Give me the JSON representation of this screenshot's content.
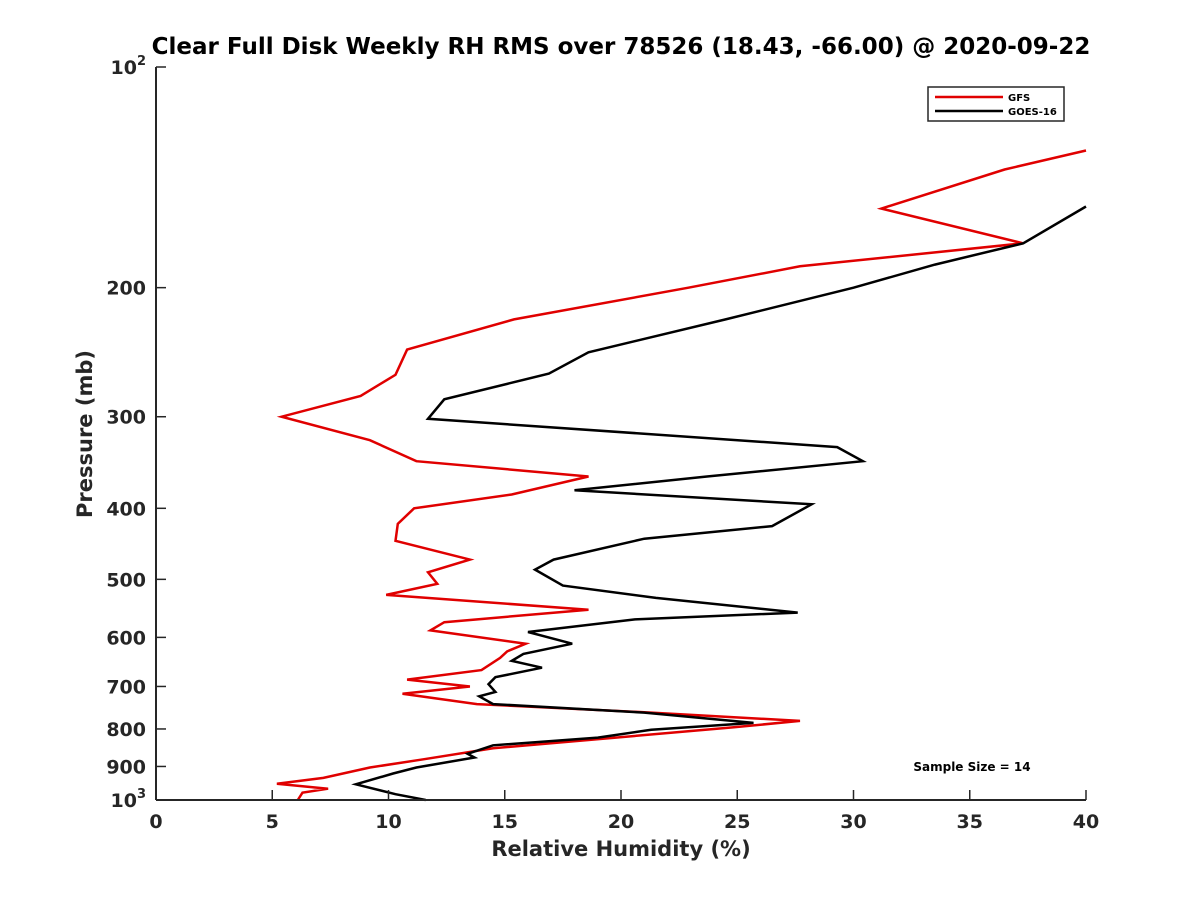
{
  "chart_data": {
    "type": "line",
    "title": "Clear Full Disk Weekly RH RMS over 78526 (18.43, -66.00) @ 2020-09-22",
    "xlabel": "Relative Humidity (%)",
    "ylabel": "Pressure (mb)",
    "xlim": [
      0,
      40
    ],
    "ylim": [
      100,
      1000
    ],
    "yscale": "log",
    "y_reversed": true,
    "x_ticks": [
      0,
      5,
      10,
      15,
      20,
      25,
      30,
      35,
      40
    ],
    "y_ticks": [
      {
        "value": 100,
        "label": "10",
        "sup": "2"
      },
      {
        "value": 200,
        "label": "200"
      },
      {
        "value": 300,
        "label": "300"
      },
      {
        "value": 400,
        "label": "400"
      },
      {
        "value": 500,
        "label": "500"
      },
      {
        "value": 600,
        "label": "600"
      },
      {
        "value": 700,
        "label": "700"
      },
      {
        "value": 800,
        "label": "800"
      },
      {
        "value": 900,
        "label": "900"
      },
      {
        "value": 1000,
        "label": "10",
        "sup": "3"
      }
    ],
    "grid": false,
    "legend_position": "top-right",
    "annotation": "Sample Size = 14",
    "series": [
      {
        "name": "GFS",
        "color": "#e00000",
        "points": [
          [
            40.0,
            130
          ],
          [
            36.5,
            138
          ],
          [
            31.2,
            156
          ],
          [
            37.3,
            174
          ],
          [
            27.7,
            187
          ],
          [
            22.9,
            200
          ],
          [
            15.4,
            221
          ],
          [
            10.8,
            243
          ],
          [
            10.3,
            263
          ],
          [
            8.8,
            281
          ],
          [
            5.4,
            300
          ],
          [
            9.2,
            323
          ],
          [
            11.2,
            345
          ],
          [
            18.6,
            362
          ],
          [
            15.3,
            383
          ],
          [
            11.1,
            400
          ],
          [
            10.4,
            420
          ],
          [
            10.3,
            443
          ],
          [
            13.5,
            470
          ],
          [
            11.7,
            489
          ],
          [
            12.1,
            507
          ],
          [
            9.9,
            525
          ],
          [
            18.6,
            550
          ],
          [
            12.4,
            572
          ],
          [
            11.8,
            587
          ],
          [
            15.9,
            612
          ],
          [
            15.1,
            627
          ],
          [
            14.8,
            640
          ],
          [
            14.0,
            665
          ],
          [
            10.8,
            685
          ],
          [
            13.5,
            700
          ],
          [
            10.6,
            716
          ],
          [
            13.8,
            740
          ],
          [
            21.3,
            760
          ],
          [
            27.7,
            780
          ],
          [
            24.8,
            796
          ],
          [
            14.5,
            850
          ],
          [
            11.5,
            880
          ],
          [
            9.2,
            903
          ],
          [
            7.2,
            933
          ],
          [
            5.2,
            950
          ],
          [
            7.4,
            965
          ],
          [
            6.3,
            977
          ],
          [
            6.1,
            1000
          ]
        ]
      },
      {
        "name": "GOES-16",
        "color": "#000000",
        "points": [
          [
            40.0,
            155
          ],
          [
            37.3,
            174
          ],
          [
            33.5,
            186
          ],
          [
            30.0,
            200
          ],
          [
            24.5,
            221
          ],
          [
            18.6,
            245
          ],
          [
            16.9,
            262
          ],
          [
            12.4,
            284
          ],
          [
            11.7,
            302
          ],
          [
            29.3,
            330
          ],
          [
            30.4,
            345
          ],
          [
            23.7,
            362
          ],
          [
            18.0,
            378
          ],
          [
            28.2,
            395
          ],
          [
            26.5,
            423
          ],
          [
            21.0,
            440
          ],
          [
            17.1,
            470
          ],
          [
            16.3,
            485
          ],
          [
            17.5,
            510
          ],
          [
            21.5,
            530
          ],
          [
            27.6,
            555
          ],
          [
            20.6,
            567
          ],
          [
            16.0,
            590
          ],
          [
            17.9,
            612
          ],
          [
            15.8,
            632
          ],
          [
            15.3,
            646
          ],
          [
            16.6,
            660
          ],
          [
            14.6,
            680
          ],
          [
            14.3,
            695
          ],
          [
            14.6,
            712
          ],
          [
            13.9,
            722
          ],
          [
            14.5,
            740
          ],
          [
            21.0,
            760
          ],
          [
            25.7,
            785
          ],
          [
            21.3,
            802
          ],
          [
            19.0,
            822
          ],
          [
            14.5,
            842
          ],
          [
            13.4,
            865
          ],
          [
            13.7,
            875
          ],
          [
            11.2,
            903
          ],
          [
            10.2,
            920
          ],
          [
            8.6,
            952
          ],
          [
            10.3,
            982
          ],
          [
            11.6,
            1000
          ]
        ]
      }
    ]
  }
}
